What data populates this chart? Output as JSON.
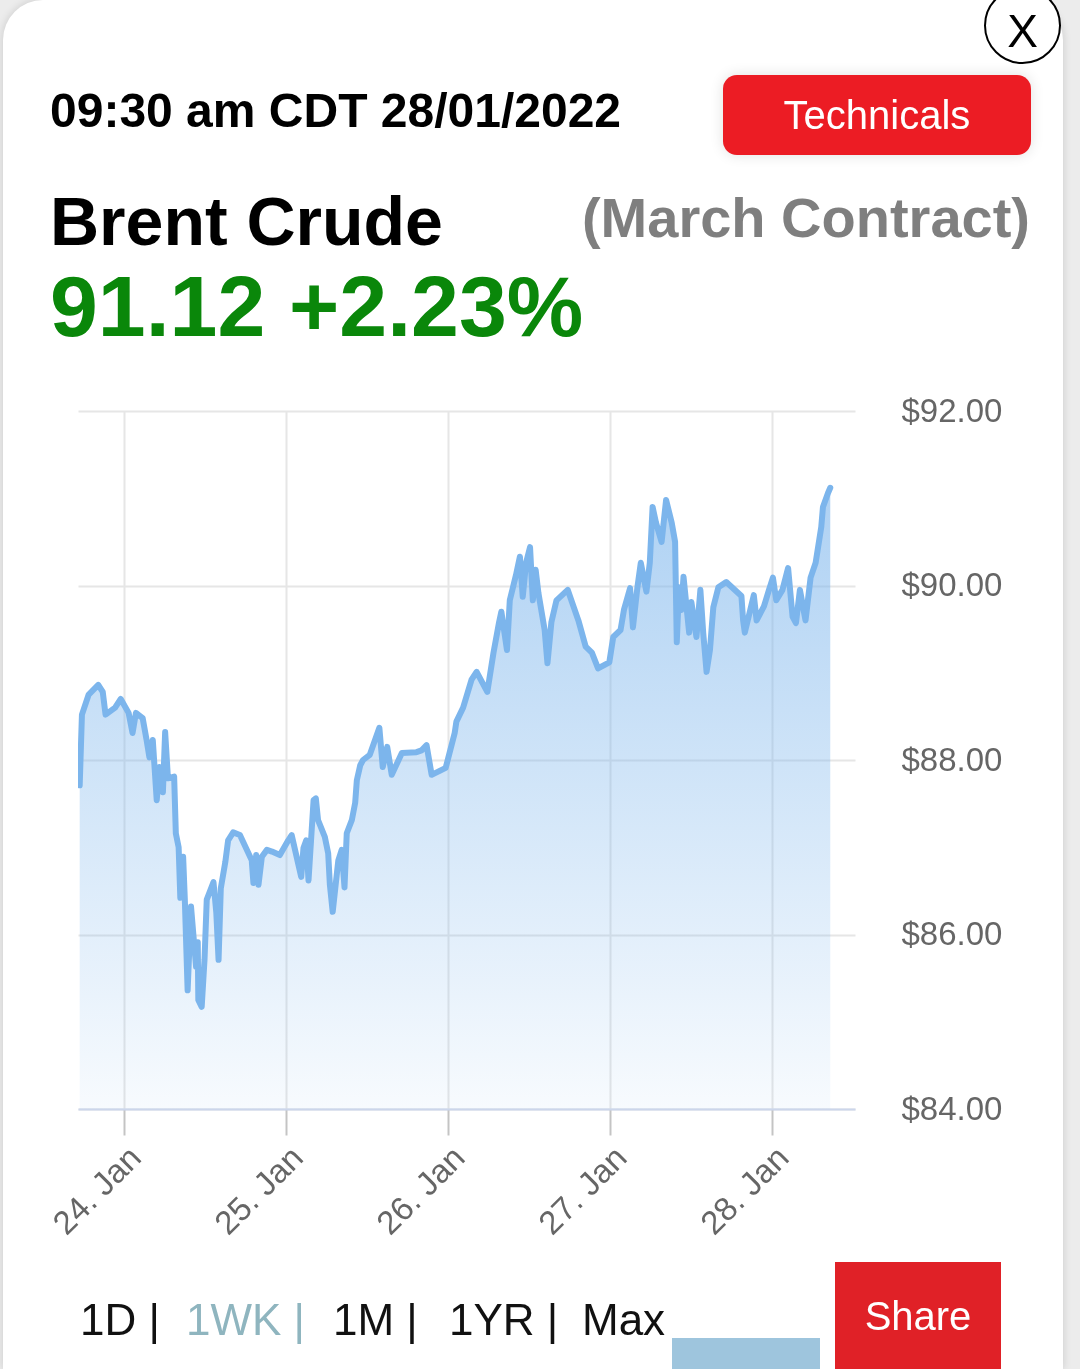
{
  "chart_data": {
    "type": "area",
    "title": "Brent Crude",
    "subtitle": "(March Contract)",
    "annotations": [
      "09:30 am CDT 28/01/2022",
      "91.12 +2.23%",
      "Technicals",
      "X",
      "1D |",
      "1WK |",
      "1M |",
      "1YR |",
      "Max",
      "Share"
    ],
    "x": [
      "2022-01-23T17:25",
      "2022-01-23T17:45",
      "2022-01-23T18:45",
      "2022-01-23T20:10",
      "2022-01-23T20:50",
      "2022-01-23T21:15",
      "2022-01-23T22:40",
      "2022-01-23T23:30",
      "2022-01-24T00:40",
      "2022-01-24T01:15",
      "2022-01-24T01:45",
      "2022-01-24T02:45",
      "2022-01-24T03:20",
      "2022-01-24T03:45",
      "2022-01-24T04:15",
      "2022-01-24T04:50",
      "2022-01-24T05:15",
      "2022-01-24T05:45",
      "2022-01-24T06:05",
      "2022-01-24T06:30",
      "2022-01-24T07:25",
      "2022-01-24T07:40",
      "2022-01-24T08:05",
      "2022-01-24T08:20",
      "2022-01-24T08:45",
      "2022-01-24T09:00",
      "2022-01-24T09:25",
      "2022-01-24T09:55",
      "2022-01-24T10:40",
      "2022-01-24T10:55",
      "2022-01-24T11:00",
      "2022-01-24T11:30",
      "2022-01-24T11:55",
      "2022-01-24T12:15",
      "2022-01-24T13:15",
      "2022-01-24T13:40",
      "2022-01-24T14:00",
      "2022-01-24T14:20",
      "2022-01-24T15:00",
      "2022-01-24T15:25",
      "2022-01-24T16:10",
      "2022-01-24T17:10",
      "2022-01-24T18:55",
      "2022-01-24T19:10",
      "2022-01-24T19:35",
      "2022-01-24T19:55",
      "2022-01-24T20:25",
      "2022-01-24T21:10",
      "2022-01-24T21:55",
      "2022-01-24T23:05",
      "2022-01-25T00:20",
      "2022-01-25T00:50",
      "2022-01-25T02:15",
      "2022-01-25T02:35",
      "2022-01-25T03:00",
      "2022-01-25T03:20",
      "2022-01-25T04:05",
      "2022-01-25T04:25",
      "2022-01-25T04:45",
      "2022-01-25T05:45",
      "2022-01-25T06:15",
      "2022-01-25T06:30",
      "2022-01-25T06:55",
      "2022-01-25T07:45",
      "2022-01-25T08:15",
      "2022-01-25T08:40",
      "2022-01-25T09:00",
      "2022-01-25T09:45",
      "2022-01-25T10:15",
      "2022-01-25T10:30",
      "2022-01-25T11:00",
      "2022-01-25T11:25",
      "2022-01-25T12:25",
      "2022-01-25T13:50",
      "2022-01-25T14:20",
      "2022-01-25T15:00",
      "2022-01-25T15:40",
      "2022-01-25T17:10",
      "2022-01-25T19:20",
      "2022-01-25T20:05",
      "2022-01-25T20:50",
      "2022-01-25T21:35",
      "2022-01-25T23:40",
      "2022-01-26T01:00",
      "2022-01-26T01:15",
      "2022-01-26T02:15",
      "2022-01-26T03:30",
      "2022-01-26T04:15",
      "2022-01-26T05:50",
      "2022-01-26T06:45",
      "2022-01-26T07:35",
      "2022-01-26T07:55",
      "2022-01-26T08:45",
      "2022-01-26T09:10",
      "2022-01-26T10:05",
      "2022-01-26T10:40",
      "2022-01-26T11:05",
      "2022-01-26T11:35",
      "2022-01-26T12:10",
      "2022-01-26T12:35",
      "2022-01-26T13:00",
      "2022-01-26T13:25",
      "2022-01-26T14:20",
      "2022-01-26T14:45",
      "2022-01-26T15:20",
      "2022-01-26T16:05",
      "2022-01-26T17:45",
      "2022-01-26T19:20",
      "2022-01-26T20:25",
      "2022-01-26T21:20",
      "2022-01-26T22:15",
      "2022-01-26T23:55",
      "2022-01-27T00:30",
      "2022-01-27T01:35",
      "2022-01-27T02:05",
      "2022-01-27T03:00",
      "2022-01-27T03:25",
      "2022-01-27T04:05",
      "2022-01-27T04:35",
      "2022-01-27T05:25",
      "2022-01-27T05:55",
      "2022-01-27T06:20",
      "2022-01-27T06:50",
      "2022-01-27T07:40",
      "2022-01-27T08:20",
      "2022-01-27T09:10",
      "2022-01-27T09:40",
      "2022-01-27T09:55",
      "2022-01-27T10:15",
      "2022-01-27T10:35",
      "2022-01-27T10:55",
      "2022-01-27T11:45",
      "2022-01-27T12:05",
      "2022-01-27T12:50",
      "2022-01-27T13:25",
      "2022-01-27T13:50",
      "2022-01-27T14:20",
      "2022-01-27T14:50",
      "2022-01-27T15:20",
      "2022-01-27T16:05",
      "2022-01-27T17:15",
      "2022-01-27T19:30",
      "2022-01-27T19:45",
      "2022-01-27T20:00",
      "2022-01-27T21:20",
      "2022-01-27T21:45",
      "2022-01-27T22:50",
      "2022-01-27T23:35",
      "2022-01-28T00:10",
      "2022-01-28T00:40",
      "2022-01-28T01:35",
      "2022-01-28T02:25",
      "2022-01-28T03:05",
      "2022-01-28T03:35",
      "2022-01-28T04:10",
      "2022-01-28T05:00",
      "2022-01-28T05:45",
      "2022-01-28T06:30",
      "2022-01-28T07:20",
      "2022-01-28T07:35",
      "2022-01-28T08:20",
      "2022-01-28T08:40"
    ],
    "values": [
      87.71,
      88.52,
      88.75,
      88.86,
      88.78,
      88.52,
      88.6,
      88.7,
      88.54,
      88.31,
      88.54,
      88.48,
      88.23,
      88.03,
      88.23,
      87.54,
      87.92,
      87.63,
      88.32,
      87.79,
      87.81,
      87.16,
      87.0,
      86.42,
      86.89,
      86.4,
      85.36,
      86.32,
      85.63,
      85.91,
      85.25,
      85.17,
      85.71,
      86.4,
      86.6,
      86.25,
      85.71,
      86.53,
      86.83,
      87.08,
      87.17,
      87.14,
      86.85,
      86.59,
      86.91,
      86.57,
      86.89,
      86.97,
      86.95,
      86.91,
      87.08,
      87.14,
      86.66,
      86.99,
      87.08,
      86.62,
      87.54,
      87.56,
      87.31,
      87.12,
      86.93,
      86.57,
      86.26,
      86.85,
      86.97,
      86.54,
      87.16,
      87.31,
      87.51,
      87.77,
      87.94,
      88.0,
      88.06,
      88.37,
      87.92,
      88.15,
      87.83,
      88.08,
      88.09,
      88.11,
      88.17,
      87.83,
      87.91,
      88.31,
      88.44,
      88.6,
      88.92,
      89.01,
      88.78,
      89.23,
      89.58,
      89.7,
      89.26,
      89.83,
      90.12,
      90.33,
      89.87,
      90.26,
      90.44,
      89.83,
      90.18,
      89.91,
      89.49,
      89.11,
      89.58,
      89.83,
      89.95,
      89.6,
      89.3,
      89.23,
      89.05,
      89.12,
      89.41,
      89.49,
      89.72,
      89.97,
      89.52,
      89.98,
      90.26,
      89.93,
      90.26,
      90.9,
      90.72,
      90.5,
      90.98,
      90.72,
      90.5,
      89.35,
      89.98,
      89.72,
      90.1,
      89.46,
      89.81,
      89.41,
      89.95,
      89.46,
      89.01,
      89.26,
      89.75,
      89.98,
      90.04,
      89.88,
      89.6,
      89.46,
      89.89,
      89.6,
      89.76,
      89.95,
      90.09,
      89.83,
      89.95,
      90.2,
      89.64,
      89.57,
      89.95,
      89.6,
      90.09,
      90.26,
      90.67,
      90.9,
      91.06,
      91.12
    ],
    "color": "#7cb5ec",
    "xlim": [
      "2022-01-23T17:10",
      "2022-01-28T12:20"
    ],
    "xticks": [
      {
        "value": "2022-01-24",
        "label": "24. Jan"
      },
      {
        "value": "2022-01-25",
        "label": "25. Jan"
      },
      {
        "value": "2022-01-26",
        "label": "26. Jan"
      },
      {
        "value": "2022-01-27",
        "label": "27. Jan"
      },
      {
        "value": "2022-01-28",
        "label": "28. Jan"
      }
    ],
    "ylim": [
      84,
      92
    ],
    "yticks": [
      {
        "value": 84,
        "label": "$84.00"
      },
      {
        "value": 86,
        "label": "$86.00"
      },
      {
        "value": 88,
        "label": "$88.00"
      },
      {
        "value": 90,
        "label": "$90.00"
      },
      {
        "value": 92,
        "label": "$92.00"
      }
    ],
    "grid": true
  }
}
